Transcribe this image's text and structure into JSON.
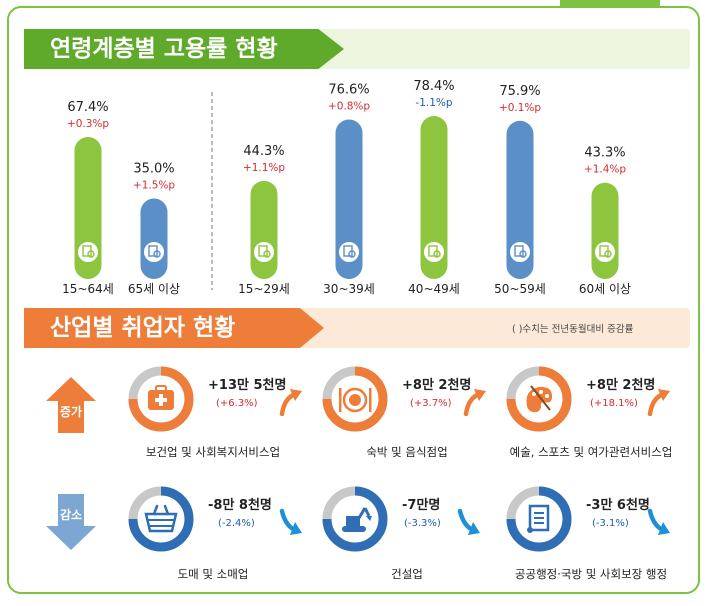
{
  "section1": {
    "title": "연령계층별 고용률 현황"
  },
  "section2": {
    "title": "산업별 취업자 현황",
    "note": "( )수치는 전년동월대비 증감률",
    "increase_label": "증가",
    "decrease_label": "감소",
    "industries": [
      {
        "name": "보건업 및 사회복지서비스업",
        "value": "+13만 5천명",
        "change": "(+6.3%)",
        "dir": "up",
        "icon": "first-aid-kit-icon"
      },
      {
        "name": "숙박 및 음식점업",
        "value": "+8만 2천명",
        "change": "(+3.7%)",
        "dir": "up",
        "icon": "plate-fork-knife-icon"
      },
      {
        "name": "예술, 스포츠 및 여가관련서비스업",
        "value": "+8만 2천명",
        "change": "(+18.1%)",
        "dir": "up",
        "icon": "palette-icon"
      },
      {
        "name": "도매 및 소매업",
        "value": "-8만 8천명",
        "change": "(-2.4%)",
        "dir": "down",
        "icon": "shopping-basket-icon"
      },
      {
        "name": "건설업",
        "value": "-7만명",
        "change": "(-3.3%)",
        "dir": "down",
        "icon": "excavator-icon"
      },
      {
        "name": "공공행정·국방 및 사회보장 행정",
        "value": "-3만 6천명",
        "change": "(-3.1%)",
        "dir": "down",
        "icon": "scroll-document-icon"
      }
    ]
  },
  "colors": {
    "green": "#8dc53e",
    "blue": "#5b8fc7",
    "orange": "#ee7d3a",
    "red": "#d42d2d",
    "down_blue": "#1f5ea8"
  },
  "chart_data": {
    "type": "bar",
    "title": "연령계층별 고용률 현황",
    "unit": "%",
    "groups": [
      {
        "name": "overall",
        "categories": [
          "15~64세",
          "65세 이상"
        ]
      },
      {
        "name": "by_age",
        "categories": [
          "15~29세",
          "30~39세",
          "40~49세",
          "50~59세",
          "60세 이상"
        ]
      }
    ],
    "categories": [
      "15~64세",
      "65세 이상",
      "15~29세",
      "30~39세",
      "40~49세",
      "50~59세",
      "60세 이상"
    ],
    "values": [
      67.4,
      35.0,
      44.3,
      76.6,
      78.4,
      75.9,
      43.3
    ],
    "value_labels": [
      "67.4%",
      "35.0%",
      "44.3%",
      "76.6%",
      "78.4%",
      "75.9%",
      "43.3%"
    ],
    "changes": [
      "+0.3%p",
      "+1.5%p",
      "+1.1%p",
      "+0.8%p",
      "-1.1%p",
      "+0.1%p",
      "+1.4%p"
    ],
    "bar_colors": [
      "green",
      "blue",
      "green",
      "blue",
      "green",
      "blue",
      "green"
    ],
    "ylim": [
      0,
      100
    ],
    "xlabel": "",
    "ylabel": ""
  }
}
